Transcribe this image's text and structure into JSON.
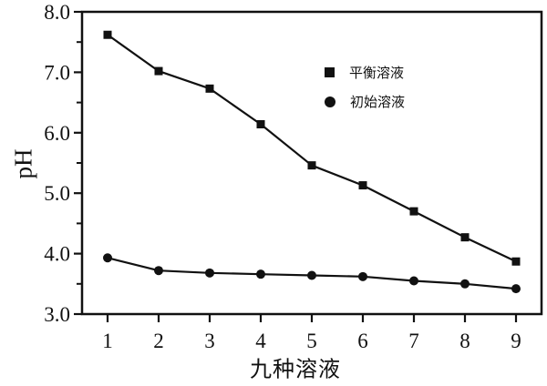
{
  "chart_data": {
    "type": "line",
    "title": "",
    "xlabel": "九种溶液",
    "ylabel": "pH",
    "categories": [
      "1",
      "2",
      "3",
      "4",
      "5",
      "6",
      "7",
      "8",
      "9"
    ],
    "ylim": [
      3.0,
      8.0
    ],
    "y_major_ticks": [
      3.0,
      4.0,
      5.0,
      6.0,
      7.0,
      8.0
    ],
    "y_tick_labels": [
      "3.0",
      "4.0",
      "5.0",
      "6.0",
      "7.0",
      "8.0"
    ],
    "y_minor_ticks": [
      3.5,
      4.5,
      5.5,
      6.5,
      7.5
    ],
    "grid": "off",
    "legend_position": "upper-middle",
    "series": [
      {
        "name": "平衡溶液",
        "marker": "square",
        "color": "#111111",
        "values": [
          7.62,
          7.02,
          6.73,
          6.14,
          5.46,
          5.13,
          4.7,
          4.27,
          3.87
        ]
      },
      {
        "name": "初始溶液",
        "marker": "circle",
        "color": "#111111",
        "values": [
          3.93,
          3.72,
          3.68,
          3.66,
          3.64,
          3.62,
          3.55,
          3.5,
          3.42
        ]
      }
    ],
    "colors": {
      "line": "#111111",
      "background": "#ffffff",
      "text": "#111111"
    }
  }
}
